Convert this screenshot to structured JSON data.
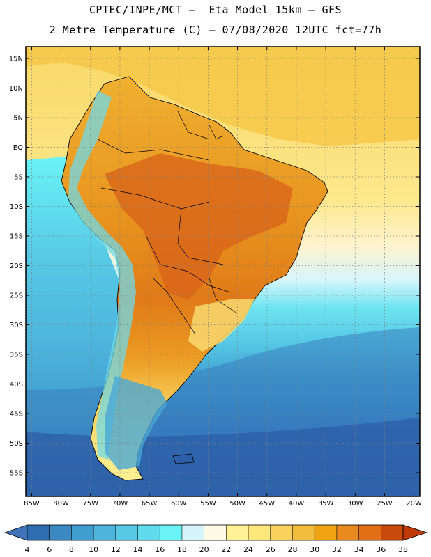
{
  "header": {
    "line1": "CPTEC/INPE/MCT –  Eta Model 15km – GFS",
    "line2": "2 Metre Temperature (C) – 07/08/2020 12UTC fct=77h"
  },
  "map": {
    "lon_range": [
      -86,
      -19
    ],
    "lat_range": [
      -59,
      17
    ],
    "lat_ticks": [
      {
        "value": 15,
        "label": "15N"
      },
      {
        "value": 10,
        "label": "10N"
      },
      {
        "value": 5,
        "label": "5N"
      },
      {
        "value": 0,
        "label": "EQ"
      },
      {
        "value": -5,
        "label": "5S"
      },
      {
        "value": -10,
        "label": "10S"
      },
      {
        "value": -15,
        "label": "15S"
      },
      {
        "value": -20,
        "label": "20S"
      },
      {
        "value": -25,
        "label": "25S"
      },
      {
        "value": -30,
        "label": "30S"
      },
      {
        "value": -35,
        "label": "35S"
      },
      {
        "value": -40,
        "label": "40S"
      },
      {
        "value": -45,
        "label": "45S"
      },
      {
        "value": -50,
        "label": "50S"
      },
      {
        "value": -55,
        "label": "55S"
      }
    ],
    "lon_ticks": [
      {
        "value": -85,
        "label": "85W"
      },
      {
        "value": -80,
        "label": "80W"
      },
      {
        "value": -75,
        "label": "75W"
      },
      {
        "value": -70,
        "label": "70W"
      },
      {
        "value": -65,
        "label": "65W"
      },
      {
        "value": -60,
        "label": "60W"
      },
      {
        "value": -55,
        "label": "55W"
      },
      {
        "value": -50,
        "label": "50W"
      },
      {
        "value": -45,
        "label": "45W"
      },
      {
        "value": -40,
        "label": "40W"
      },
      {
        "value": -35,
        "label": "35W"
      },
      {
        "value": -30,
        "label": "30W"
      },
      {
        "value": -25,
        "label": "25W"
      },
      {
        "value": -20,
        "label": "20W"
      }
    ]
  },
  "colorbar": {
    "levels": [
      "4",
      "6",
      "8",
      "10",
      "12",
      "14",
      "16",
      "18",
      "20",
      "22",
      "24",
      "26",
      "28",
      "30",
      "32",
      "34",
      "36",
      "38"
    ],
    "colors": [
      "#2e6db0",
      "#3b88c3",
      "#3f9ecf",
      "#4db5dc",
      "#57c9e6",
      "#5fdbed",
      "#6af3f6",
      "#d6f5fb",
      "#fffae6",
      "#fff296",
      "#fde67a",
      "#f8d25c",
      "#f0bd3c",
      "#f0a414",
      "#e88a1e",
      "#e06f16",
      "#c94a0a"
    ],
    "under_color": "#3f72b8",
    "over_color": "#bf3a08"
  }
}
